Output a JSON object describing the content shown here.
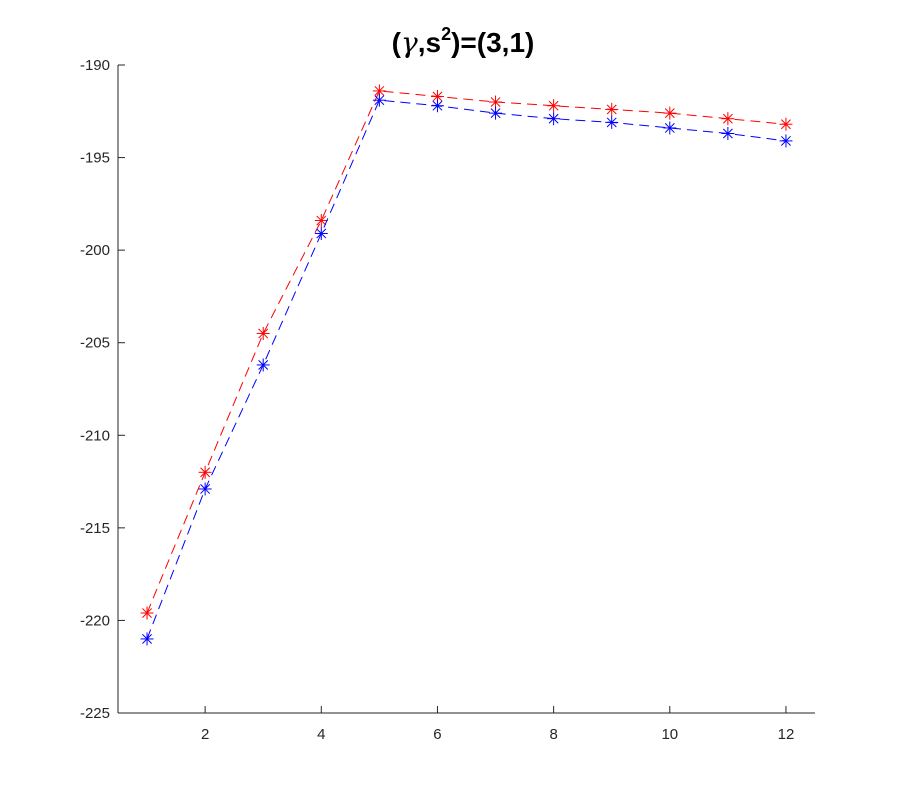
{
  "chart_data": {
    "type": "line",
    "title": {
      "prefix": "(",
      "symbol": "γ",
      "mid": ",s",
      "superscript": "2",
      "suffix": ")=(3,1)"
    },
    "xlabel": "",
    "ylabel": "",
    "xlim": [
      0.5,
      12.5
    ],
    "ylim": [
      -225,
      -190
    ],
    "xticks": [
      2,
      4,
      6,
      8,
      10,
      12
    ],
    "yticks": [
      -190,
      -195,
      -200,
      -205,
      -210,
      -215,
      -220,
      -225
    ],
    "grid": false,
    "x": [
      1,
      2,
      3,
      4,
      5,
      6,
      7,
      8,
      9,
      10,
      11,
      12
    ],
    "series": [
      {
        "color": "#ff0000",
        "line_style": "dashed",
        "marker": "asterisk",
        "values": [
          -219.6,
          -212.0,
          -204.5,
          -198.4,
          -191.4,
          -191.7,
          -192.0,
          -192.2,
          -192.4,
          -192.6,
          -192.9,
          -193.2
        ]
      },
      {
        "color": "#0000ff",
        "line_style": "dashed",
        "marker": "asterisk",
        "values": [
          -221.0,
          -212.9,
          -206.2,
          -199.1,
          -191.9,
          -192.2,
          -192.6,
          -192.9,
          -193.1,
          -193.4,
          -193.7,
          -194.1
        ]
      }
    ]
  }
}
